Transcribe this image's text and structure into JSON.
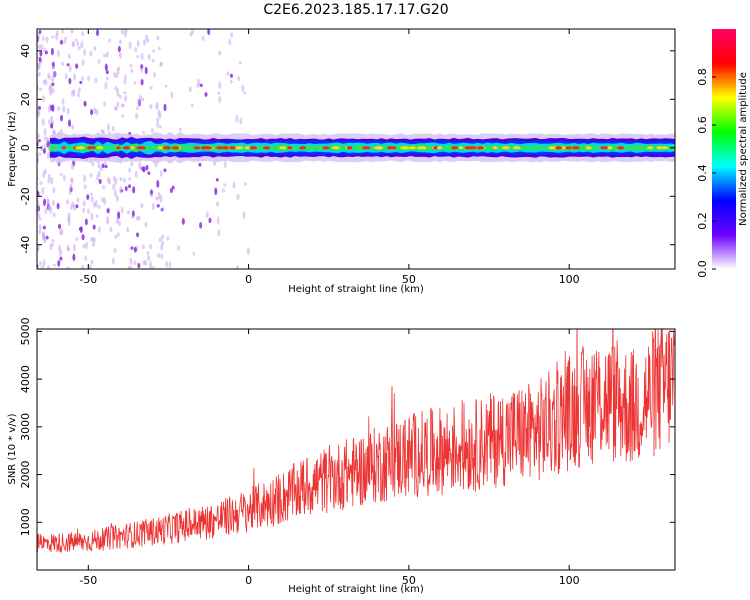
{
  "title": "C2E6.2023.185.17.17.G20",
  "chart_data": [
    {
      "type": "heatmap",
      "xlabel": "Height of straight line (km)",
      "ylabel": "Frequency (Hz)",
      "xlim": [
        -66,
        133
      ],
      "ylim": [
        -50,
        49
      ],
      "xticks": [
        -50,
        0,
        50,
        100
      ],
      "yticks": [
        -40,
        -20,
        0,
        20,
        40
      ],
      "colorbar": {
        "label": "Normalized spectral amplitude",
        "range": [
          0,
          1
        ],
        "ticks": [
          "0.0",
          "0.2",
          "0.4",
          "0.6",
          "0.8"
        ],
        "colormap": [
          "#ffffff",
          "#6b00ff",
          "#0000ff",
          "#00ffff",
          "#00ff00",
          "#ffff00",
          "#ff0000",
          "#ff0066"
        ]
      },
      "description_of_signal": {
        "band_center_hz": 0,
        "scatter_region_km": [
          -66,
          -20
        ],
        "strong_band_km": [
          -60,
          133
        ]
      }
    },
    {
      "type": "line",
      "xlabel": "Height of straight line (km)",
      "ylabel": "SNR (10 * v/v)",
      "xlim": [
        -66,
        133
      ],
      "ylim": [
        0,
        5050
      ],
      "xticks": [
        -50,
        0,
        50,
        100
      ],
      "yticks": [
        1000,
        2000,
        3000,
        4000,
        5000
      ],
      "color": "#ee3333",
      "trend_points": {
        "x": [
          -66,
          -50,
          -30,
          -10,
          0,
          10,
          20,
          30,
          40,
          50,
          60,
          70,
          80,
          90,
          100,
          110,
          120,
          133
        ],
        "y": [
          550,
          600,
          800,
          1050,
          1250,
          1500,
          1800,
          2000,
          2200,
          2400,
          2500,
          2600,
          2800,
          2900,
          3300,
          3600,
          3400,
          4000
        ]
      }
    }
  ]
}
